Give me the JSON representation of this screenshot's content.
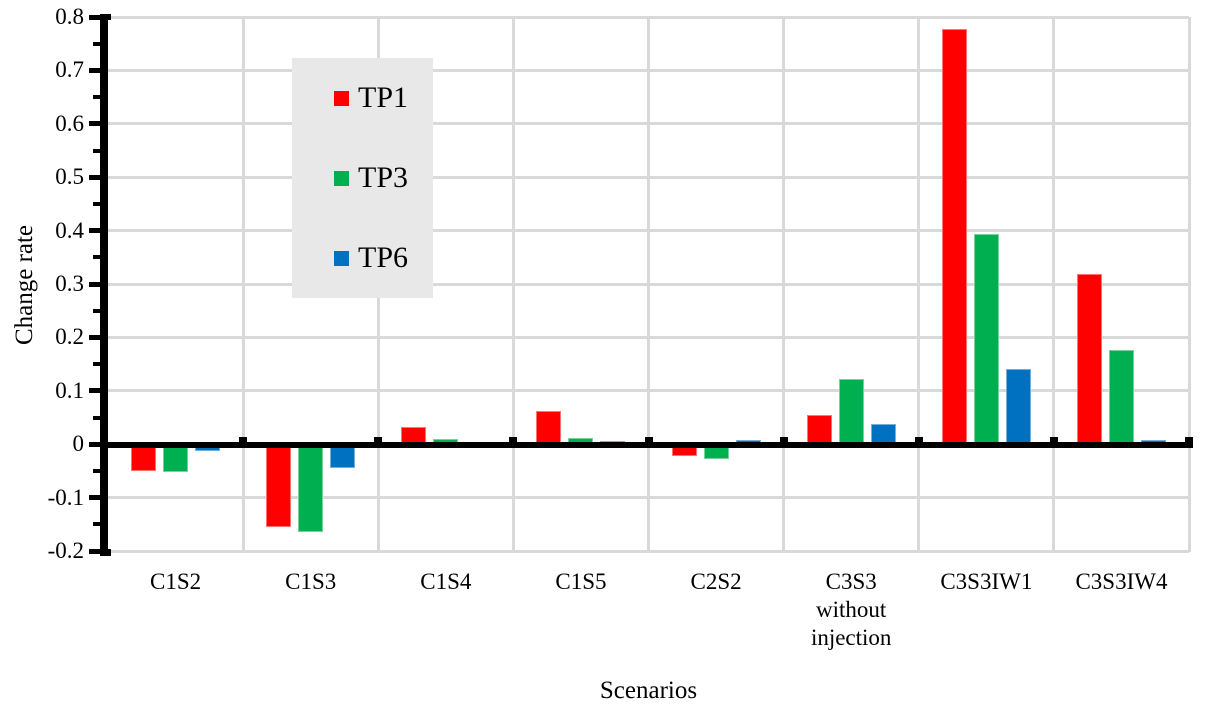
{
  "chart_data": {
    "type": "bar",
    "title": "",
    "xlabel": "Scenarios",
    "ylabel": "Change rate",
    "ylim": [
      -0.2,
      0.8
    ],
    "ytick_step": 0.1,
    "yminor_step": 0.05,
    "grid": true,
    "legend_position": "upper-left-inside",
    "categories": [
      "C1S2",
      "C1S3",
      "C1S4",
      "C1S5",
      "C2S2",
      "C3S3\nwithout\ninjection",
      "C3S3IW1",
      "C3S3IW4"
    ],
    "series": [
      {
        "name": "TP1",
        "color": "#ff0000",
        "values": [
          -0.05,
          -0.155,
          0.033,
          0.063,
          -0.022,
          0.055,
          0.778,
          0.318
        ]
      },
      {
        "name": "TP3",
        "color": "#00b050",
        "values": [
          -0.053,
          -0.165,
          0.01,
          0.012,
          -0.028,
          0.123,
          0.393,
          0.177
        ]
      },
      {
        "name": "TP6",
        "color": "#0070c0",
        "values": [
          -0.012,
          -0.045,
          0.002,
          0.006,
          0.008,
          0.038,
          0.14,
          0.007
        ]
      }
    ]
  },
  "colors": {
    "tp1_red": "#ff0000",
    "tp3_green": "#00b050",
    "tp6_blue": "#0070c0",
    "gridline": "#d9d9d9",
    "axis": "#000000",
    "legend_background": "#e8e8e8",
    "background": "#ffffff",
    "text": "#000000"
  }
}
